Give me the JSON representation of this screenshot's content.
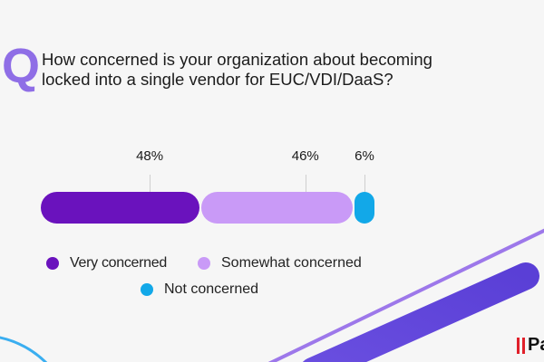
{
  "question": {
    "mark": "Q",
    "text_line1": "How concerned is your organization about becoming",
    "text_line2": "locked into a single vendor for EUC/VDI/DaaS?"
  },
  "colors": {
    "very": "#6a12bd",
    "somewhat": "#c99af7",
    "not": "#12a8e8",
    "accent": "#8f6ee6"
  },
  "chart_data": {
    "type": "bar",
    "orientation": "horizontal-stacked",
    "categories": [
      "Very concerned",
      "Somewhat concerned",
      "Not concerned"
    ],
    "values": [
      48,
      46,
      6
    ],
    "labels": [
      "48%",
      "46%",
      "6%"
    ],
    "legend": [
      "Very concerned",
      "Somewhat concerned",
      "Not concerned"
    ],
    "legend_placement": "bottom",
    "grid": false
  },
  "logo": {
    "text": "Pa"
  }
}
